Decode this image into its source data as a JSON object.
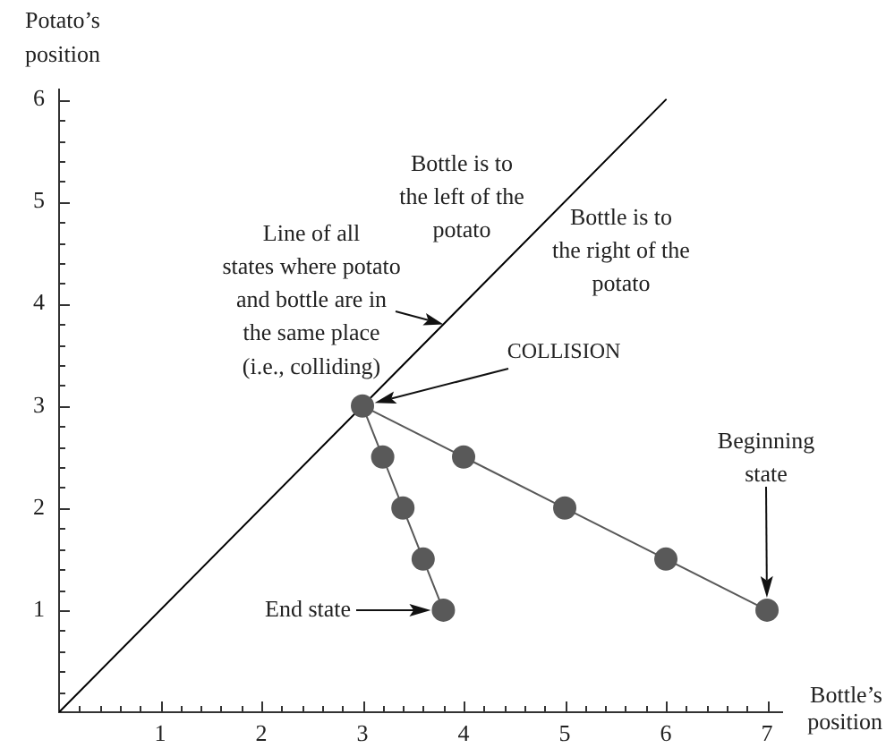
{
  "chart_data": {
    "type": "line",
    "xlabel": "Bottle’s position",
    "ylabel": "Potato’s position",
    "marker": "circle",
    "series": [
      {
        "color": "#595959",
        "x": [
          7,
          6,
          5,
          4,
          3,
          3.2,
          3.4,
          3.6,
          3.8
        ],
        "values": [
          1,
          1.5,
          2,
          2.5,
          3,
          2.5,
          2,
          1.5,
          1
        ]
      },
      {
        "color": "#000000",
        "marker": "none",
        "x": [
          0,
          6
        ],
        "values": [
          0,
          6
        ]
      }
    ],
    "xlim": [
      0,
      7.15
    ],
    "ylim": [
      0,
      6.1
    ],
    "xticks": [
      {
        "value": 0.2,
        "label": null
      },
      {
        "value": 0.4,
        "label": null
      },
      {
        "value": 0.6,
        "label": null
      },
      {
        "value": 0.8,
        "label": null
      },
      1,
      {
        "value": 1.2,
        "label": null
      },
      {
        "value": 1.4,
        "label": null
      },
      {
        "value": 1.6,
        "label": null
      },
      {
        "value": 1.8,
        "label": null
      },
      2,
      {
        "value": 2.2,
        "label": null
      },
      {
        "value": 2.4,
        "label": null
      },
      {
        "value": 2.6,
        "label": null
      },
      {
        "value": 2.8,
        "label": null
      },
      3,
      {
        "value": 3.2,
        "label": null
      },
      {
        "value": 3.4,
        "label": null
      },
      {
        "value": 3.6,
        "label": null
      },
      {
        "value": 3.8,
        "label": null
      },
      4,
      {
        "value": 4.2,
        "label": null
      },
      {
        "value": 4.4,
        "label": null
      },
      {
        "value": 4.6,
        "label": null
      },
      {
        "value": 4.8,
        "label": null
      },
      5,
      {
        "value": 5.2,
        "label": null
      },
      {
        "value": 5.4,
        "label": null
      },
      {
        "value": 5.6,
        "label": null
      },
      {
        "value": 5.8,
        "label": null
      },
      6,
      {
        "value": 6.2,
        "label": null
      },
      {
        "value": 6.4,
        "label": null
      },
      {
        "value": 6.6,
        "label": null
      },
      {
        "value": 6.8,
        "label": null
      },
      7
    ],
    "yticks": [
      {
        "value": 0.2,
        "label": null
      },
      {
        "value": 0.4,
        "label": null
      },
      {
        "value": 0.6,
        "label": null
      },
      {
        "value": 0.8,
        "label": null
      },
      1,
      {
        "value": 1.2,
        "label": null
      },
      {
        "value": 1.4,
        "label": null
      },
      {
        "value": 1.6,
        "label": null
      },
      {
        "value": 1.8,
        "label": null
      },
      2,
      {
        "value": 2.2,
        "label": null
      },
      {
        "value": 2.4,
        "label": null
      },
      {
        "value": 2.6,
        "label": null
      },
      {
        "value": 2.8,
        "label": null
      },
      3,
      {
        "value": 3.2,
        "label": null
      },
      {
        "value": 3.4,
        "label": null
      },
      {
        "value": 3.6,
        "label": null
      },
      {
        "value": 3.8,
        "label": null
      },
      4,
      {
        "value": 4.2,
        "label": null
      },
      {
        "value": 4.4,
        "label": null
      },
      {
        "value": 4.6,
        "label": null
      },
      {
        "value": 4.8,
        "label": null
      },
      5,
      {
        "value": 5.2,
        "label": null
      },
      {
        "value": 5.4,
        "label": null
      },
      {
        "value": 5.6,
        "label": null
      },
      {
        "value": 5.8,
        "label": null
      },
      6
    ],
    "annotations": [
      "Bottle is to\nthe left of the\npotato",
      "Bottle is to\nthe right of the\npotato",
      {
        "text": "Line of all\nstates where potato\nand bottle are in\nthe same place\n(i.e., colliding)",
        "x": 3.8,
        "y": 3.8
      },
      "COLLISION",
      "Beginning\nstate",
      "End state"
    ]
  }
}
